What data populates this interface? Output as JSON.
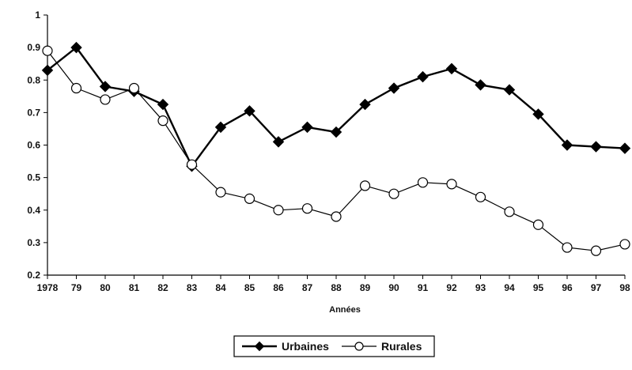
{
  "chart_data": {
    "type": "line",
    "categories": [
      "1978",
      "79",
      "80",
      "81",
      "82",
      "83",
      "84",
      "85",
      "86",
      "87",
      "88",
      "89",
      "90",
      "91",
      "92",
      "93",
      "94",
      "95",
      "96",
      "97",
      "98"
    ],
    "series": [
      {
        "name": "Urbaines",
        "marker": "filled-diamond",
        "color": "#000000",
        "values": [
          0.83,
          0.9,
          0.78,
          0.765,
          0.725,
          0.535,
          0.655,
          0.705,
          0.61,
          0.655,
          0.64,
          0.725,
          0.775,
          0.81,
          0.835,
          0.785,
          0.77,
          0.695,
          0.6,
          0.595,
          0.59
        ]
      },
      {
        "name": "Rurales",
        "marker": "open-circle",
        "color": "#000000",
        "values": [
          0.89,
          0.775,
          0.74,
          0.775,
          0.675,
          0.54,
          0.455,
          0.435,
          0.4,
          0.405,
          0.38,
          0.475,
          0.45,
          0.485,
          0.48,
          0.44,
          0.395,
          0.355,
          0.285,
          0.275,
          0.295
        ]
      }
    ],
    "title": "",
    "xlabel": "Années",
    "ylabel": "",
    "ylim": [
      0.2,
      1
    ],
    "yticks": [
      "0.2",
      "0.3",
      "0.4",
      "0.5",
      "0.6",
      "0.7",
      "0.8",
      "0.9",
      "1"
    ],
    "grid": false,
    "legend_position": "bottom-center"
  }
}
